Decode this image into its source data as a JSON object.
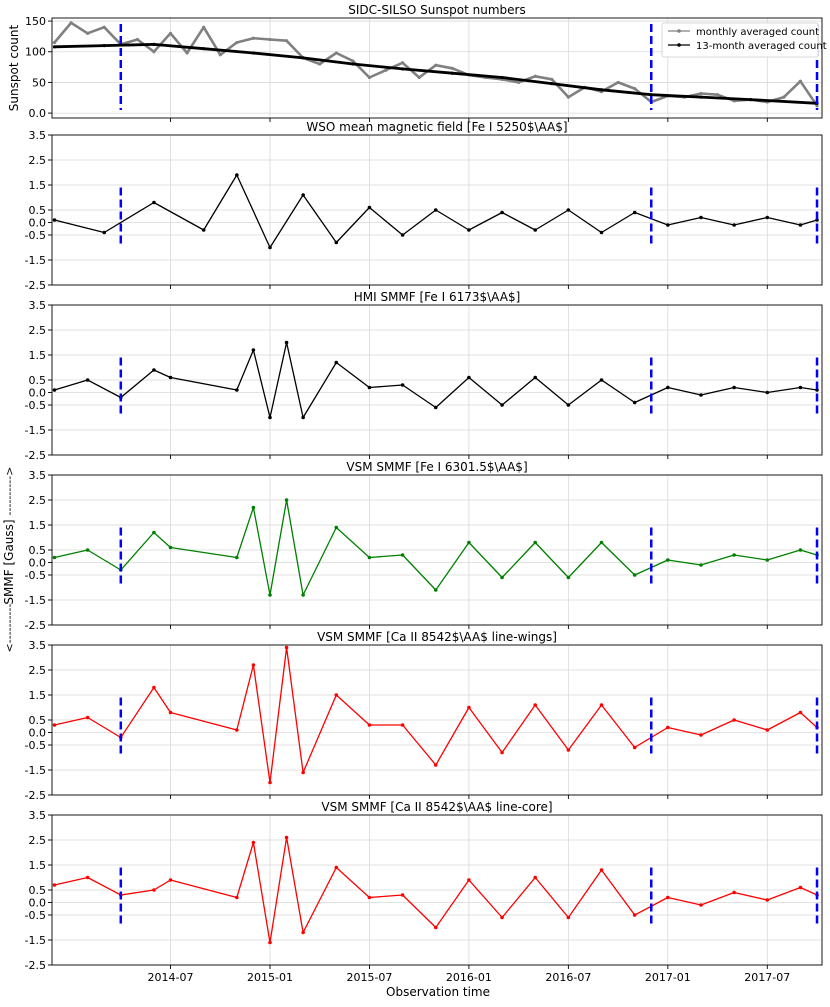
{
  "figure": {
    "shared_ylabel": "SMMF [Gauss]",
    "shared_ylabel_arrow_up": "---------->",
    "shared_ylabel_arrow_down": "<----------",
    "xlabel": "Observation time",
    "x_tick_labels": [
      "2014-07",
      "2015-01",
      "2015-07",
      "2016-01",
      "2016-07",
      "2017-01",
      "2017-07"
    ],
    "colors": {
      "grey": "#808080",
      "black": "#000000",
      "green": "#008000",
      "red": "#ff0000",
      "marker_blue": "#0000ff"
    }
  },
  "chart_data": [
    {
      "type": "line",
      "title": "SIDC-SILSO Sunspot numbers",
      "ylabel": "Sunspot count",
      "ylim": [
        -8,
        155
      ],
      "yticks": [
        0,
        50,
        100,
        150
      ],
      "xlim": [
        "2013-12",
        "2017-10"
      ],
      "grid": true,
      "legend_position": "top-right",
      "legend": [
        "monthly averaged count",
        "13-month averaged count"
      ],
      "vertical_markers": [
        "2014-04",
        "2016-12",
        "2017-10"
      ],
      "series": [
        {
          "name": "monthly averaged count",
          "color": "#808080",
          "x": [
            "2013-12",
            "2014-01",
            "2014-02",
            "2014-03",
            "2014-04",
            "2014-05",
            "2014-06",
            "2014-07",
            "2014-08",
            "2014-09",
            "2014-10",
            "2014-11",
            "2014-12",
            "2015-01",
            "2015-02",
            "2015-03",
            "2015-04",
            "2015-05",
            "2015-06",
            "2015-07",
            "2015-08",
            "2015-09",
            "2015-10",
            "2015-11",
            "2015-12",
            "2016-01",
            "2016-02",
            "2016-03",
            "2016-04",
            "2016-05",
            "2016-06",
            "2016-07",
            "2016-08",
            "2016-09",
            "2016-10",
            "2016-11",
            "2016-12",
            "2017-01",
            "2017-02",
            "2017-03",
            "2017-04",
            "2017-05",
            "2017-06",
            "2017-07",
            "2017-08",
            "2017-09",
            "2017-10"
          ],
          "values": [
            115,
            147,
            130,
            140,
            112,
            120,
            100,
            130,
            98,
            140,
            95,
            115,
            122,
            120,
            118,
            90,
            80,
            98,
            85,
            58,
            70,
            82,
            58,
            78,
            73,
            62,
            58,
            55,
            50,
            60,
            55,
            26,
            42,
            35,
            50,
            40,
            18,
            28,
            26,
            32,
            30,
            20,
            22,
            18,
            26,
            52,
            12
          ]
        },
        {
          "name": "13-month averaged count",
          "color": "#000000",
          "x": [
            "2013-12",
            "2014-03",
            "2014-06",
            "2014-09",
            "2014-12",
            "2015-03",
            "2015-06",
            "2015-09",
            "2015-12",
            "2016-03",
            "2016-06",
            "2016-09",
            "2016-12",
            "2017-03",
            "2017-06",
            "2017-10"
          ],
          "values": [
            108,
            110,
            112,
            105,
            98,
            90,
            80,
            72,
            65,
            58,
            48,
            38,
            30,
            26,
            22,
            16
          ]
        }
      ]
    },
    {
      "type": "line",
      "title": "WSO mean magnetic field [Fe I 5250$\\AA$]",
      "ylim": [
        -2.5,
        3.5
      ],
      "yticks": [
        -2.5,
        -1.5,
        -0.5,
        0.0,
        0.5,
        1.5,
        2.5,
        3.5
      ],
      "grid": true,
      "color": "#000000",
      "vertical_markers": [
        "2014-04",
        "2016-12",
        "2017-10"
      ],
      "x": [
        "2013-12",
        "2014-03",
        "2014-06",
        "2014-09",
        "2014-11",
        "2015-01",
        "2015-03",
        "2015-05",
        "2015-07",
        "2015-09",
        "2015-11",
        "2016-01",
        "2016-03",
        "2016-05",
        "2016-07",
        "2016-09",
        "2016-11",
        "2017-01",
        "2017-03",
        "2017-05",
        "2017-07",
        "2017-09",
        "2017-10"
      ],
      "values": [
        0.1,
        -0.4,
        0.8,
        -0.3,
        1.9,
        -1.0,
        1.1,
        -0.8,
        0.6,
        -0.5,
        0.5,
        -0.3,
        0.4,
        -0.3,
        0.5,
        -0.4,
        0.4,
        -0.1,
        0.2,
        -0.1,
        0.2,
        -0.1,
        0.1
      ]
    },
    {
      "type": "line",
      "title": "HMI SMMF [Fe I 6173$\\AA$]",
      "ylim": [
        -2.5,
        3.5
      ],
      "yticks": [
        -2.5,
        -1.5,
        -0.5,
        0.0,
        0.5,
        1.5,
        2.5,
        3.5
      ],
      "grid": true,
      "color": "#000000",
      "vertical_markers": [
        "2014-04",
        "2016-12",
        "2017-10"
      ],
      "x": [
        "2013-12",
        "2014-02",
        "2014-04",
        "2014-06",
        "2014-07",
        "2014-11",
        "2014-12",
        "2015-01",
        "2015-02",
        "2015-03",
        "2015-05",
        "2015-07",
        "2015-09",
        "2015-11",
        "2016-01",
        "2016-03",
        "2016-05",
        "2016-07",
        "2016-09",
        "2016-11",
        "2017-01",
        "2017-03",
        "2017-05",
        "2017-07",
        "2017-09",
        "2017-10"
      ],
      "values": [
        0.1,
        0.5,
        -0.2,
        0.9,
        0.6,
        0.1,
        1.7,
        -1.0,
        2.0,
        -1.0,
        1.2,
        0.2,
        0.3,
        -0.6,
        0.6,
        -0.5,
        0.6,
        -0.5,
        0.5,
        -0.4,
        0.2,
        -0.1,
        0.2,
        0.0,
        0.2,
        0.1
      ]
    },
    {
      "type": "line",
      "title": "VSM SMMF [Fe I 6301.5$\\AA$]",
      "ylim": [
        -2.5,
        3.5
      ],
      "yticks": [
        -2.5,
        -1.5,
        -0.5,
        0.0,
        0.5,
        1.5,
        2.5,
        3.5
      ],
      "grid": true,
      "color": "#008000",
      "vertical_markers": [
        "2014-04",
        "2016-12",
        "2017-10"
      ],
      "x": [
        "2013-12",
        "2014-02",
        "2014-04",
        "2014-06",
        "2014-07",
        "2014-11",
        "2014-12",
        "2015-01",
        "2015-02",
        "2015-03",
        "2015-05",
        "2015-07",
        "2015-09",
        "2015-11",
        "2016-01",
        "2016-03",
        "2016-05",
        "2016-07",
        "2016-09",
        "2016-11",
        "2017-01",
        "2017-03",
        "2017-05",
        "2017-07",
        "2017-09",
        "2017-10"
      ],
      "values": [
        0.2,
        0.5,
        -0.3,
        1.2,
        0.6,
        0.2,
        2.2,
        -1.3,
        2.5,
        -1.3,
        1.4,
        0.2,
        0.3,
        -1.1,
        0.8,
        -0.6,
        0.8,
        -0.6,
        0.8,
        -0.5,
        0.1,
        -0.1,
        0.3,
        0.1,
        0.5,
        0.3
      ]
    },
    {
      "type": "line",
      "title": "VSM SMMF [Ca II 8542$\\AA$ line-wings]",
      "ylim": [
        -2.5,
        3.5
      ],
      "yticks": [
        -2.5,
        -1.5,
        -0.5,
        0.0,
        0.5,
        1.5,
        2.5,
        3.5
      ],
      "grid": true,
      "color": "#ff0000",
      "vertical_markers": [
        "2014-04",
        "2016-12",
        "2017-10"
      ],
      "x": [
        "2013-12",
        "2014-02",
        "2014-04",
        "2014-06",
        "2014-07",
        "2014-11",
        "2014-12",
        "2015-01",
        "2015-02",
        "2015-03",
        "2015-05",
        "2015-07",
        "2015-09",
        "2015-11",
        "2016-01",
        "2016-03",
        "2016-05",
        "2016-07",
        "2016-09",
        "2016-11",
        "2017-01",
        "2017-03",
        "2017-05",
        "2017-07",
        "2017-09",
        "2017-10"
      ],
      "values": [
        0.3,
        0.6,
        -0.2,
        1.8,
        0.8,
        0.1,
        2.7,
        -2.0,
        3.4,
        -1.6,
        1.5,
        0.3,
        0.3,
        -1.3,
        1.0,
        -0.8,
        1.1,
        -0.7,
        1.1,
        -0.6,
        0.2,
        -0.1,
        0.5,
        0.1,
        0.8,
        0.2
      ]
    },
    {
      "type": "line",
      "title": "VSM SMMF [Ca II 8542$\\AA$ line-core]",
      "ylim": [
        -2.5,
        3.5
      ],
      "yticks": [
        -2.5,
        -1.5,
        -0.5,
        0.0,
        0.5,
        1.5,
        2.5,
        3.5
      ],
      "grid": true,
      "color": "#ff0000",
      "vertical_markers": [
        "2014-04",
        "2016-12",
        "2017-10"
      ],
      "x": [
        "2013-12",
        "2014-02",
        "2014-04",
        "2014-06",
        "2014-07",
        "2014-11",
        "2014-12",
        "2015-01",
        "2015-02",
        "2015-03",
        "2015-05",
        "2015-07",
        "2015-09",
        "2015-11",
        "2016-01",
        "2016-03",
        "2016-05",
        "2016-07",
        "2016-09",
        "2016-11",
        "2017-01",
        "2017-03",
        "2017-05",
        "2017-07",
        "2017-09",
        "2017-10"
      ],
      "values": [
        0.7,
        1.0,
        0.3,
        0.5,
        0.9,
        0.2,
        2.4,
        -1.6,
        2.6,
        -1.2,
        1.4,
        0.2,
        0.3,
        -1.0,
        0.9,
        -0.6,
        1.0,
        -0.6,
        1.3,
        -0.5,
        0.2,
        -0.1,
        0.4,
        0.1,
        0.6,
        0.3
      ]
    }
  ]
}
